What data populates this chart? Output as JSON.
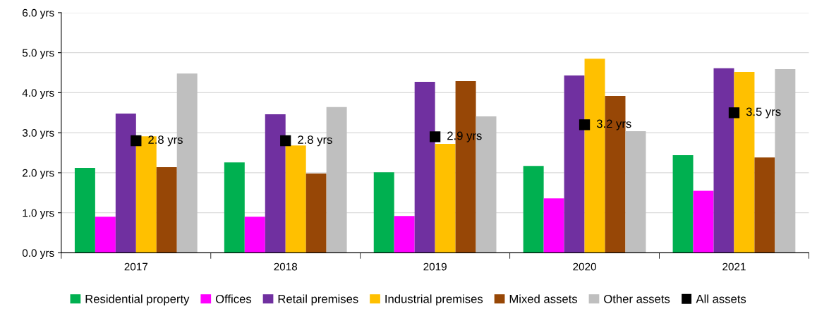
{
  "chart_data": {
    "type": "bar",
    "categories": [
      "2017",
      "2018",
      "2019",
      "2020",
      "2021"
    ],
    "series": [
      {
        "name": "Residential property",
        "color": "#00b050",
        "values": [
          2.12,
          2.26,
          2.01,
          2.17,
          2.44
        ]
      },
      {
        "name": "Offices",
        "color": "#ff00ff",
        "values": [
          0.9,
          0.9,
          0.92,
          1.36,
          1.55
        ]
      },
      {
        "name": "Retail premises",
        "color": "#7030a0",
        "values": [
          3.48,
          3.46,
          4.27,
          4.43,
          4.61
        ]
      },
      {
        "name": "Industrial premises",
        "color": "#ffc000",
        "values": [
          2.91,
          2.68,
          2.72,
          4.85,
          4.52
        ]
      },
      {
        "name": "Mixed assets",
        "color": "#974706",
        "values": [
          2.14,
          1.98,
          4.29,
          3.92,
          2.38
        ]
      },
      {
        "name": "Other assets",
        "color": "#bfbfbf",
        "values": [
          4.48,
          3.64,
          3.41,
          3.04,
          4.59
        ]
      },
      {
        "name": "All assets",
        "type": "scatter",
        "color": "#000000",
        "values": [
          2.8,
          2.8,
          2.9,
          3.2,
          3.5
        ],
        "value_labels": [
          "2.8 yrs",
          "2.8 yrs",
          "2.9 yrs",
          "3.2 yrs",
          "3.5 yrs"
        ],
        "marker": "square"
      }
    ],
    "ylim": [
      0,
      6
    ],
    "yticks": [
      {
        "value": 0,
        "label": "0.0 yrs"
      },
      {
        "value": 1,
        "label": "1.0 yrs"
      },
      {
        "value": 2,
        "label": "2.0 yrs"
      },
      {
        "value": 3,
        "label": "3.0 yrs"
      },
      {
        "value": 4,
        "label": "4.0 yrs"
      },
      {
        "value": 5,
        "label": "5.0 yrs"
      },
      {
        "value": 6,
        "label": "6.0 yrs"
      }
    ],
    "grid": "y",
    "legend": "bottom"
  }
}
